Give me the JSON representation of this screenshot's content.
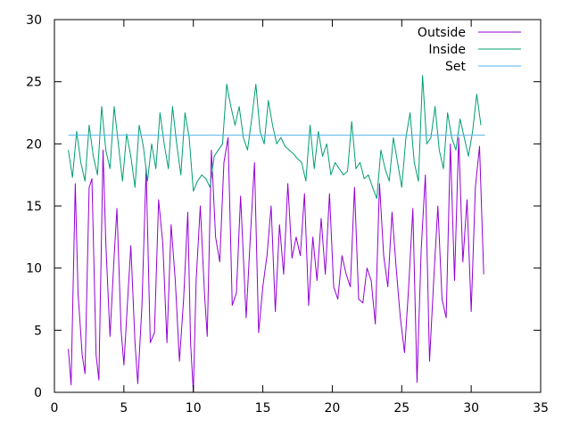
{
  "chart_data": {
    "type": "line",
    "title": "",
    "xlabel": "",
    "ylabel": "",
    "xlim": [
      0,
      35
    ],
    "ylim": [
      0,
      30
    ],
    "xticks": [
      0,
      5,
      10,
      15,
      20,
      25,
      30,
      35
    ],
    "yticks": [
      0,
      5,
      10,
      15,
      20,
      25,
      30
    ],
    "grid": false,
    "legend_position": "top-right",
    "series": [
      {
        "name": "Outside",
        "color": "#9400d3",
        "points": [
          [
            1.0,
            3.5
          ],
          [
            1.2,
            0.6
          ],
          [
            1.5,
            16.8
          ],
          [
            1.7,
            8.0
          ],
          [
            2.0,
            3.0
          ],
          [
            2.2,
            1.5
          ],
          [
            2.5,
            16.5
          ],
          [
            2.7,
            17.2
          ],
          [
            3.0,
            3.0
          ],
          [
            3.2,
            1.0
          ],
          [
            3.5,
            19.5
          ],
          [
            3.7,
            12.0
          ],
          [
            4.0,
            4.5
          ],
          [
            4.3,
            11.0
          ],
          [
            4.5,
            14.8
          ],
          [
            4.8,
            5.0
          ],
          [
            5.0,
            2.2
          ],
          [
            5.3,
            8.0
          ],
          [
            5.5,
            11.8
          ],
          [
            5.8,
            4.0
          ],
          [
            6.0,
            0.7
          ],
          [
            6.3,
            7.0
          ],
          [
            6.6,
            18.0
          ],
          [
            6.9,
            4.0
          ],
          [
            7.2,
            4.8
          ],
          [
            7.5,
            15.5
          ],
          [
            7.8,
            12.0
          ],
          [
            8.1,
            4.0
          ],
          [
            8.4,
            13.5
          ],
          [
            8.7,
            9.0
          ],
          [
            9.0,
            2.5
          ],
          [
            9.3,
            7.5
          ],
          [
            9.6,
            14.5
          ],
          [
            9.8,
            4.0
          ],
          [
            10.0,
            0.0
          ],
          [
            10.2,
            9.0
          ],
          [
            10.5,
            15.0
          ],
          [
            10.8,
            8.0
          ],
          [
            11.0,
            4.5
          ],
          [
            11.3,
            19.5
          ],
          [
            11.6,
            12.5
          ],
          [
            11.9,
            10.5
          ],
          [
            12.2,
            18.5
          ],
          [
            12.5,
            20.5
          ],
          [
            12.8,
            7.0
          ],
          [
            13.1,
            8.0
          ],
          [
            13.4,
            15.8
          ],
          [
            13.8,
            6.0
          ],
          [
            14.1,
            12.5
          ],
          [
            14.4,
            18.5
          ],
          [
            14.7,
            4.8
          ],
          [
            15.0,
            8.5
          ],
          [
            15.3,
            11.0
          ],
          [
            15.6,
            15.0
          ],
          [
            15.9,
            6.5
          ],
          [
            16.2,
            13.5
          ],
          [
            16.5,
            9.5
          ],
          [
            16.8,
            16.8
          ],
          [
            17.1,
            10.8
          ],
          [
            17.4,
            12.5
          ],
          [
            17.7,
            11.0
          ],
          [
            18.0,
            16.0
          ],
          [
            18.3,
            7.0
          ],
          [
            18.6,
            12.5
          ],
          [
            18.9,
            9.0
          ],
          [
            19.2,
            14.0
          ],
          [
            19.5,
            9.5
          ],
          [
            19.8,
            16.0
          ],
          [
            20.1,
            8.5
          ],
          [
            20.4,
            7.5
          ],
          [
            20.7,
            11.0
          ],
          [
            21.0,
            9.5
          ],
          [
            21.3,
            8.5
          ],
          [
            21.6,
            16.5
          ],
          [
            21.9,
            7.5
          ],
          [
            22.2,
            7.2
          ],
          [
            22.5,
            10.0
          ],
          [
            22.8,
            9.0
          ],
          [
            23.1,
            5.5
          ],
          [
            23.4,
            16.8
          ],
          [
            23.7,
            11.0
          ],
          [
            24.0,
            8.5
          ],
          [
            24.3,
            14.5
          ],
          [
            24.6,
            10.0
          ],
          [
            24.9,
            6.0
          ],
          [
            25.2,
            3.2
          ],
          [
            25.5,
            8.5
          ],
          [
            25.8,
            14.8
          ],
          [
            26.1,
            0.8
          ],
          [
            26.4,
            11.5
          ],
          [
            26.7,
            17.5
          ],
          [
            27.0,
            2.5
          ],
          [
            27.3,
            9.0
          ],
          [
            27.6,
            15.0
          ],
          [
            27.9,
            7.5
          ],
          [
            28.2,
            6.0
          ],
          [
            28.5,
            20.0
          ],
          [
            28.8,
            9.0
          ],
          [
            29.1,
            20.5
          ],
          [
            29.4,
            10.5
          ],
          [
            29.7,
            15.5
          ],
          [
            30.0,
            6.5
          ],
          [
            30.3,
            16.5
          ],
          [
            30.6,
            19.8
          ],
          [
            30.9,
            9.5
          ]
        ]
      },
      {
        "name": "Inside",
        "color": "#009e73",
        "points": [
          [
            1.0,
            19.5
          ],
          [
            1.3,
            17.3
          ],
          [
            1.6,
            21.0
          ],
          [
            1.9,
            18.5
          ],
          [
            2.2,
            17.0
          ],
          [
            2.5,
            21.5
          ],
          [
            2.8,
            19.0
          ],
          [
            3.1,
            17.5
          ],
          [
            3.4,
            23.0
          ],
          [
            3.7,
            19.5
          ],
          [
            4.0,
            18.0
          ],
          [
            4.3,
            23.0
          ],
          [
            4.6,
            20.0
          ],
          [
            4.9,
            17.0
          ],
          [
            5.2,
            20.8
          ],
          [
            5.5,
            19.0
          ],
          [
            5.8,
            16.5
          ],
          [
            6.1,
            21.5
          ],
          [
            6.4,
            19.8
          ],
          [
            6.7,
            17.0
          ],
          [
            7.0,
            20.0
          ],
          [
            7.3,
            18.0
          ],
          [
            7.6,
            22.5
          ],
          [
            7.9,
            20.0
          ],
          [
            8.2,
            18.0
          ],
          [
            8.5,
            23.0
          ],
          [
            8.8,
            20.0
          ],
          [
            9.1,
            17.5
          ],
          [
            9.4,
            22.5
          ],
          [
            9.7,
            20.5
          ],
          [
            10.0,
            16.2
          ],
          [
            10.3,
            17.0
          ],
          [
            10.6,
            17.5
          ],
          [
            10.9,
            17.2
          ],
          [
            11.2,
            16.5
          ],
          [
            11.5,
            19.0
          ],
          [
            11.8,
            19.5
          ],
          [
            12.1,
            20.0
          ],
          [
            12.4,
            24.8
          ],
          [
            12.7,
            23.0
          ],
          [
            13.0,
            21.5
          ],
          [
            13.3,
            23.0
          ],
          [
            13.6,
            20.5
          ],
          [
            13.9,
            19.5
          ],
          [
            14.2,
            22.0
          ],
          [
            14.5,
            24.8
          ],
          [
            14.8,
            21.0
          ],
          [
            15.1,
            20.0
          ],
          [
            15.4,
            23.5
          ],
          [
            15.7,
            21.5
          ],
          [
            16.0,
            20.0
          ],
          [
            16.3,
            20.5
          ],
          [
            16.6,
            19.8
          ],
          [
            16.9,
            19.5
          ],
          [
            17.2,
            19.2
          ],
          [
            17.5,
            18.8
          ],
          [
            17.8,
            18.5
          ],
          [
            18.1,
            17.0
          ],
          [
            18.4,
            21.5
          ],
          [
            18.7,
            18.0
          ],
          [
            19.0,
            21.0
          ],
          [
            19.3,
            19.0
          ],
          [
            19.6,
            20.0
          ],
          [
            19.9,
            17.5
          ],
          [
            20.2,
            18.5
          ],
          [
            20.5,
            18.0
          ],
          [
            20.8,
            17.5
          ],
          [
            21.1,
            17.8
          ],
          [
            21.4,
            21.8
          ],
          [
            21.7,
            18.0
          ],
          [
            22.0,
            18.5
          ],
          [
            22.3,
            17.2
          ],
          [
            22.6,
            17.5
          ],
          [
            22.9,
            16.5
          ],
          [
            23.2,
            15.6
          ],
          [
            23.5,
            19.5
          ],
          [
            23.8,
            18.0
          ],
          [
            24.1,
            17.0
          ],
          [
            24.4,
            20.5
          ],
          [
            24.7,
            18.5
          ],
          [
            25.0,
            16.5
          ],
          [
            25.3,
            20.5
          ],
          [
            25.6,
            22.5
          ],
          [
            25.9,
            18.5
          ],
          [
            26.2,
            17.0
          ],
          [
            26.5,
            25.5
          ],
          [
            26.8,
            20.0
          ],
          [
            27.1,
            20.5
          ],
          [
            27.4,
            23.0
          ],
          [
            27.7,
            19.5
          ],
          [
            28.0,
            18.0
          ],
          [
            28.3,
            22.5
          ],
          [
            28.6,
            20.5
          ],
          [
            28.9,
            19.5
          ],
          [
            29.2,
            22.0
          ],
          [
            29.5,
            20.5
          ],
          [
            29.8,
            19.0
          ],
          [
            30.1,
            21.0
          ],
          [
            30.4,
            24.0
          ],
          [
            30.7,
            21.5
          ]
        ]
      },
      {
        "name": "Set",
        "color": "#56b4e9",
        "points": [
          [
            1.0,
            20.7
          ],
          [
            31.0,
            20.7
          ]
        ]
      }
    ]
  }
}
